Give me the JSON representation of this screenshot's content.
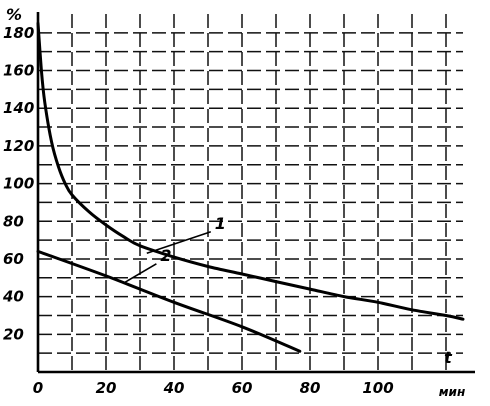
{
  "chart_data": {
    "type": "line",
    "title": "",
    "xlabel": "t",
    "x_unit": "мин",
    "ylabel": "%",
    "xlim": [
      0,
      125
    ],
    "ylim": [
      0,
      190
    ],
    "x_ticks": [
      "0",
      "20",
      "40",
      "60",
      "80",
      "100"
    ],
    "x_tick_values": [
      0,
      20,
      40,
      60,
      80,
      100
    ],
    "y_ticks": [
      "20",
      "40",
      "60",
      "80",
      "100",
      "120",
      "140",
      "160",
      "180"
    ],
    "y_tick_values": [
      20,
      40,
      60,
      80,
      100,
      120,
      140,
      160,
      180
    ],
    "grid": true,
    "series": [
      {
        "name": "1",
        "x": [
          0,
          1,
          2,
          4,
          6,
          8,
          10,
          15,
          20,
          25,
          30,
          40,
          50,
          60,
          70,
          80,
          90,
          100,
          110,
          120,
          125
        ],
        "y": [
          185,
          160,
          143,
          122,
          109,
          100,
          94,
          85,
          78,
          72,
          67,
          61,
          56,
          52,
          48,
          44,
          40,
          37,
          33,
          30,
          28
        ]
      },
      {
        "name": "2",
        "x": [
          0,
          20,
          40,
          60,
          77
        ],
        "y": [
          64,
          51,
          37,
          24,
          11
        ]
      }
    ]
  }
}
